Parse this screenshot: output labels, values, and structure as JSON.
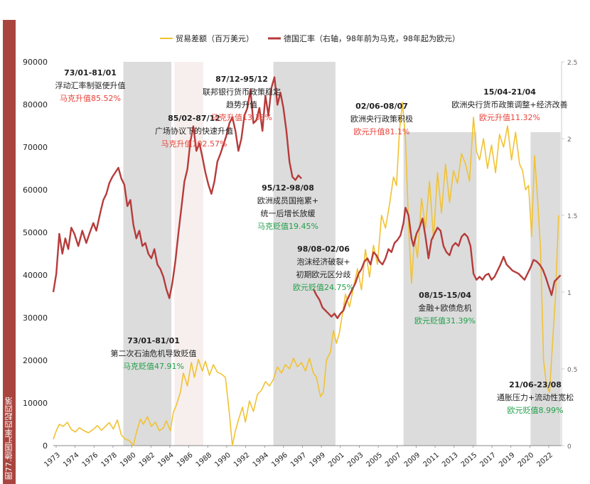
{
  "figure": {
    "label": "图77.德国汇率四起四落"
  },
  "colors": {
    "trade": "#f1c232",
    "fx": "#b63b3b",
    "shade": "#dcdcdc",
    "shade_light": "#f6efed",
    "up": "#e8433a",
    "down": "#21a04a",
    "text": "#222222",
    "axis": "#666666"
  },
  "chart_data": {
    "type": "line",
    "legend": [
      {
        "key": "trade",
        "label": "贸易差额（百万美元）"
      },
      {
        "key": "fx",
        "label": "德国汇率（右轴，98年前为马克，98年起为欧元）"
      }
    ],
    "x_ticks": [
      "1973",
      "1974",
      "1976",
      "1978",
      "1980",
      "1982",
      "1984",
      "1986",
      "1988",
      "1990",
      "1992",
      "1994",
      "1996",
      "1997",
      "1999",
      "2001",
      "2003",
      "2005",
      "2007",
      "2009",
      "2011",
      "2013",
      "2015",
      "2017",
      "2019",
      "2020",
      "2022"
    ],
    "x_range": [
      1973,
      2023.8
    ],
    "y_left": {
      "min": 0,
      "max": 90000,
      "ticks": [
        "0",
        "10000",
        "20000",
        "30000",
        "40000",
        "50000",
        "60000",
        "70000",
        "80000",
        "90000"
      ]
    },
    "y_right": {
      "min": 0,
      "max": 2.5,
      "ticks": [
        "0",
        "0.5",
        "1",
        "1.5",
        "2",
        "2.5"
      ]
    },
    "shaded": [
      {
        "from": 1980.0,
        "to": 1984.8,
        "top": 90000,
        "tone": "dark"
      },
      {
        "from": 1985.1,
        "to": 1988.0,
        "top": 90000,
        "tone": "light"
      },
      {
        "from": 1995.0,
        "to": 2001.2,
        "top": 90000,
        "tone": "dark"
      },
      {
        "from": 2008.0,
        "to": 2015.3,
        "top": 73500,
        "tone": "dark"
      },
      {
        "from": 2020.7,
        "to": 2023.7,
        "top": 73500,
        "tone": "dark"
      }
    ],
    "series": [
      {
        "name": "贸易差额（百万美元）",
        "axis": "left",
        "key": "trade",
        "x": [
          1973.0,
          1973.3,
          1973.6,
          1974.0,
          1974.4,
          1974.8,
          1975.2,
          1975.6,
          1976.0,
          1976.5,
          1977.0,
          1977.4,
          1977.8,
          1978.2,
          1978.6,
          1979.0,
          1979.4,
          1979.8,
          1980.2,
          1980.6,
          1981.0,
          1981.3,
          1981.7,
          1982.0,
          1982.4,
          1982.8,
          1983.2,
          1983.6,
          1984.0,
          1984.3,
          1984.7,
          1985.0,
          1985.3,
          1985.7,
          1986.0,
          1986.4,
          1986.8,
          1987.1,
          1987.5,
          1987.9,
          1988.2,
          1988.6,
          1989.0,
          1989.4,
          1989.8,
          1990.2,
          1990.6,
          1990.9,
          1991.2,
          1991.5,
          1991.9,
          1992.2,
          1992.6,
          1993.0,
          1993.4,
          1993.8,
          1994.2,
          1994.6,
          1995.0,
          1995.4,
          1995.8,
          1996.2,
          1996.6,
          1997.0,
          1997.4,
          1997.8,
          1998.2,
          1998.6,
          1999.0,
          1999.3,
          1999.7,
          2000.0,
          2000.3,
          2000.7,
          2001.0,
          2001.3,
          2001.6,
          2001.9,
          2002.2,
          2002.6,
          2003.0,
          2003.4,
          2003.8,
          2004.2,
          2004.6,
          2005.0,
          2005.4,
          2005.8,
          2006.2,
          2006.6,
          2007.0,
          2007.3,
          2007.6,
          2007.9,
          2008.2,
          2008.5,
          2008.8,
          2009.1,
          2009.4,
          2009.8,
          2010.2,
          2010.6,
          2011.0,
          2011.4,
          2011.8,
          2012.2,
          2012.6,
          2013.0,
          2013.4,
          2013.8,
          2014.2,
          2014.6,
          2015.0,
          2015.3,
          2015.6,
          2016.0,
          2016.4,
          2016.8,
          2017.2,
          2017.6,
          2018.0,
          2018.4,
          2018.8,
          2019.2,
          2019.6,
          2019.9,
          2020.2,
          2020.5,
          2020.8,
          2021.1,
          2021.4,
          2021.7,
          2022.0,
          2022.3,
          2022.6,
          2022.9,
          2023.2,
          2023.5
        ],
        "values": [
          1500,
          3500,
          5000,
          4500,
          5500,
          3800,
          3200,
          4200,
          3600,
          3000,
          3800,
          4700,
          3600,
          4500,
          5400,
          3900,
          6000,
          2500,
          1500,
          1200,
          0,
          3000,
          6200,
          5000,
          6800,
          4500,
          5500,
          3500,
          4200,
          5800,
          3500,
          7800,
          9500,
          12500,
          17000,
          14000,
          19500,
          16000,
          20200,
          17500,
          19800,
          16500,
          19000,
          17200,
          16800,
          16000,
          7500,
          0,
          3500,
          6000,
          9000,
          5500,
          10500,
          8000,
          12000,
          13000,
          15000,
          14000,
          15500,
          18500,
          17000,
          19000,
          18000,
          20500,
          18500,
          19500,
          17500,
          20500,
          17000,
          16000,
          11500,
          12500,
          20000,
          22000,
          27000,
          24000,
          26500,
          31000,
          35500,
          32500,
          37000,
          41500,
          36500,
          46000,
          39500,
          47000,
          42500,
          54000,
          51000,
          56500,
          63000,
          61000,
          74000,
          80500,
          72000,
          52000,
          38000,
          49000,
          44000,
          58000,
          51000,
          62000,
          48500,
          64000,
          54500,
          66000,
          57000,
          64500,
          61500,
          68500,
          66000,
          62000,
          77000,
          69000,
          67000,
          72000,
          65000,
          70500,
          64000,
          73000,
          70000,
          75000,
          67000,
          73500,
          66000,
          64500,
          60000,
          61000,
          49000,
          68000,
          58000,
          46000,
          20000,
          14000,
          12500,
          24000,
          35500,
          54000
        ],
        "style": "line"
      },
      {
        "name": "德国汇率（右轴，98年前为马克，98年起为欧元）",
        "axis": "right",
        "key": "fx",
        "segments": [
          {
            "x": [
              1973.0,
              1973.3,
              1973.6,
              1973.9,
              1974.2,
              1974.5,
              1974.8,
              1975.1,
              1975.5,
              1975.9,
              1976.3,
              1976.6,
              1977.0,
              1977.3,
              1977.7,
              1978.0,
              1978.3,
              1978.6,
              1978.9,
              1979.2,
              1979.5,
              1979.8,
              1980.1,
              1980.4,
              1980.7,
              1981.0,
              1981.3,
              1981.6,
              1981.9,
              1982.2,
              1982.5,
              1982.8,
              1983.1,
              1983.4,
              1983.7,
              1984.0,
              1984.3,
              1984.6,
              1984.9,
              1985.2,
              1985.5,
              1985.8,
              1986.1,
              1986.4,
              1986.7,
              1987.0,
              1987.3,
              1987.6,
              1987.9,
              1988.2,
              1988.5,
              1988.8,
              1989.1,
              1989.4,
              1989.7,
              1990.0,
              1990.3,
              1990.6,
              1990.9,
              1991.2,
              1991.5,
              1991.8,
              1992.1,
              1992.4,
              1992.7,
              1993.0,
              1993.3,
              1993.6,
              1993.9,
              1994.2,
              1994.5,
              1994.8,
              1995.1,
              1995.4,
              1995.7,
              1996.0,
              1996.3,
              1996.6,
              1996.9,
              1997.2,
              1997.5,
              1997.8
            ],
            "values": [
              1.0,
              1.12,
              1.38,
              1.25,
              1.35,
              1.28,
              1.42,
              1.38,
              1.3,
              1.4,
              1.32,
              1.38,
              1.45,
              1.4,
              1.52,
              1.6,
              1.64,
              1.71,
              1.75,
              1.78,
              1.81,
              1.74,
              1.7,
              1.56,
              1.6,
              1.44,
              1.35,
              1.4,
              1.3,
              1.32,
              1.25,
              1.22,
              1.28,
              1.18,
              1.15,
              1.1,
              1.02,
              0.96,
              1.06,
              1.2,
              1.38,
              1.55,
              1.72,
              1.8,
              1.98,
              2.08,
              1.92,
              1.97,
              1.88,
              1.78,
              1.7,
              1.64,
              1.72,
              1.85,
              1.9,
              1.96,
              2.02,
              2.1,
              2.14,
              2.05,
              1.92,
              2.0,
              2.15,
              2.2,
              2.32,
              2.1,
              2.12,
              2.2,
              2.05,
              2.28,
              2.15,
              2.33,
              2.4,
              2.22,
              2.3,
              2.2,
              2.05,
              1.85,
              1.75,
              1.73,
              1.76,
              1.74
            ]
          },
          {
            "x": [
              1999.0,
              1999.3,
              1999.6,
              1999.9,
              2000.2,
              2000.5,
              2000.8,
              2001.1,
              2001.4,
              2001.7,
              2002.0,
              2002.3,
              2002.6,
              2002.9,
              2003.2,
              2003.5,
              2003.8,
              2004.1,
              2004.4,
              2004.7,
              2005.0,
              2005.3,
              2005.6,
              2005.9,
              2006.2,
              2006.5,
              2006.8,
              2007.1,
              2007.4,
              2007.7,
              2008.0,
              2008.2,
              2008.5,
              2008.8,
              2009.0,
              2009.3,
              2009.6,
              2009.9,
              2010.2,
              2010.5,
              2010.8,
              2011.1,
              2011.4,
              2011.7,
              2012.0,
              2012.3,
              2012.6,
              2012.9,
              2013.2,
              2013.5,
              2013.8,
              2014.1,
              2014.4,
              2014.7,
              2015.0,
              2015.3,
              2015.6,
              2015.9,
              2016.2,
              2016.5,
              2016.8,
              2017.1,
              2017.4,
              2017.7,
              2018.0,
              2018.3,
              2018.6,
              2018.9,
              2019.2,
              2019.5,
              2019.8,
              2020.1,
              2020.4,
              2020.7,
              2021.0,
              2021.3,
              2021.6,
              2021.9,
              2022.2,
              2022.5,
              2022.8,
              2023.1,
              2023.4,
              2023.7
            ],
            "values": [
              1.02,
              0.98,
              0.95,
              0.9,
              0.88,
              0.86,
              0.84,
              0.86,
              0.83,
              0.86,
              0.88,
              0.94,
              0.98,
              1.02,
              1.06,
              1.12,
              1.15,
              1.2,
              1.22,
              1.18,
              1.26,
              1.24,
              1.2,
              1.18,
              1.22,
              1.28,
              1.26,
              1.32,
              1.34,
              1.37,
              1.45,
              1.55,
              1.5,
              1.35,
              1.3,
              1.38,
              1.42,
              1.48,
              1.36,
              1.22,
              1.34,
              1.38,
              1.42,
              1.4,
              1.3,
              1.26,
              1.24,
              1.3,
              1.32,
              1.3,
              1.36,
              1.38,
              1.36,
              1.3,
              1.12,
              1.08,
              1.1,
              1.08,
              1.11,
              1.12,
              1.08,
              1.1,
              1.14,
              1.18,
              1.23,
              1.18,
              1.16,
              1.14,
              1.13,
              1.12,
              1.1,
              1.08,
              1.12,
              1.16,
              1.21,
              1.2,
              1.18,
              1.15,
              1.1,
              1.04,
              0.98,
              1.07,
              1.09,
              1.11
            ]
          }
        ],
        "style": "line"
      }
    ],
    "annotations": [
      {
        "id": "a1",
        "lines": [
          "73/01-81/01",
          "浮动汇率制驱使升值"
        ],
        "value": "马克升值85.52%",
        "tone": "up"
      },
      {
        "id": "a2",
        "lines": [
          "85/02-87/12",
          "广场协议下的快速升值"
        ],
        "value": "马克升值102.57%",
        "tone": "up"
      },
      {
        "id": "a3",
        "lines": [
          "87/12-95/12",
          "联邦银行货币政策稳定",
          "趋势升值"
        ],
        "value": "马克升值13.38%",
        "tone": "up"
      },
      {
        "id": "a4",
        "lines": [
          "95/12-98/08",
          "欧洲成员国拖累+",
          "统一后增长放缓"
        ],
        "value": "马克贬值19.45%",
        "tone": "down"
      },
      {
        "id": "a5",
        "lines": [
          "73/01-81/01",
          "第二次石油危机导致贬值"
        ],
        "value": "马克贬值47.91%",
        "tone": "down"
      },
      {
        "id": "a6",
        "lines": [
          "98/08-02/06",
          "泡沫经济破裂+",
          "初期欧元区分歧"
        ],
        "value": "欧元贬值24.75%",
        "tone": "down"
      },
      {
        "id": "a7",
        "lines": [
          "02/06-08/07",
          "欧洲央行政策积极"
        ],
        "value": "欧元升值81.1%",
        "tone": "up"
      },
      {
        "id": "a8",
        "lines": [
          "08/15-15/04",
          "金融+欧债危机"
        ],
        "value": "欧元贬值31.39%",
        "tone": "down"
      },
      {
        "id": "a9",
        "lines": [
          "15/04-21/04",
          "欧洲央行货币政策调整+经济改善"
        ],
        "value": "欧元升值11.32%",
        "tone": "up"
      },
      {
        "id": "a10",
        "lines": [
          "21/06-23/08",
          "通胀压力+流动性宽松"
        ],
        "value": "欧元贬值8.99%",
        "tone": "down"
      }
    ]
  }
}
